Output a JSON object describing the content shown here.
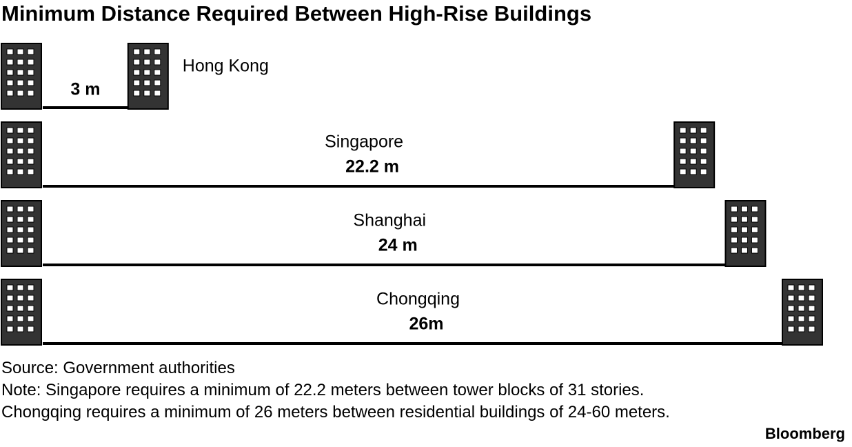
{
  "chart_data": {
    "type": "bar",
    "title": "Minimum Distance Required Between High-Rise Buildings",
    "categories": [
      "Hong Kong",
      "Singapore",
      "Shanghai",
      "Chongqing"
    ],
    "values": [
      3,
      22.2,
      24,
      26
    ],
    "value_labels": [
      "3 m",
      "22.2 m",
      "24 m",
      "26m"
    ],
    "color": "#333333",
    "source": "Source: Government authorities",
    "note": "Note: Singapore requires a minimum of 22.2 meters between tower blocks of 31 stories. Chongqing requires a minimum of 26 meters between residential buildings of 24-60 meters.",
    "brand": "Bloomberg"
  }
}
